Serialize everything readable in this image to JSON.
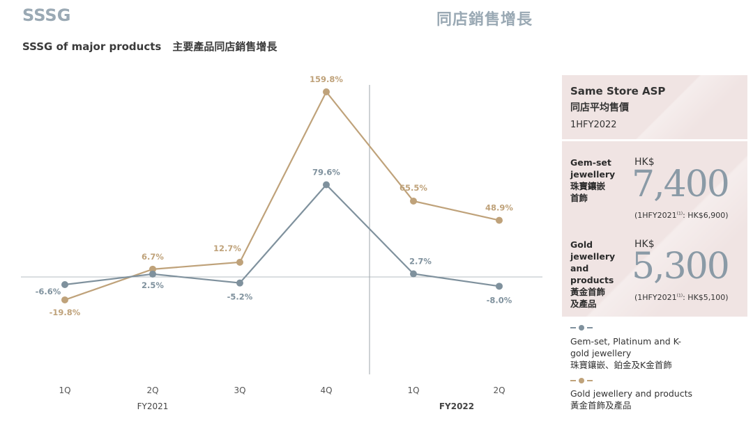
{
  "header": {
    "title_en": "SSSG",
    "title_zh": "同店銷售增長",
    "subtitle_en": "SSSG of major products",
    "subtitle_zh": "主要產品同店銷售增長"
  },
  "chart_data": {
    "type": "line",
    "categories": [
      "1Q",
      "2Q",
      "3Q",
      "4Q",
      "1Q",
      "2Q"
    ],
    "groups": [
      {
        "label": "FY2021",
        "from": 0,
        "to": 3
      },
      {
        "label": "FY2022",
        "from": 4,
        "to": 5
      }
    ],
    "series": [
      {
        "name": "Gem-set, Platinum and K-gold jewellery",
        "name_zh": "珠寶鑲嵌、鉑金及K金首飾",
        "color": "#7f919d",
        "values": [
          -6.6,
          2.5,
          -5.2,
          79.6,
          2.7,
          -8.0
        ],
        "labels": [
          "-6.6%",
          "2.5%",
          "-5.2%",
          "79.6%",
          "2.7%",
          "-8.0%"
        ]
      },
      {
        "name": "Gold jewellery and products",
        "name_zh": "黃金首飾及產品",
        "color": "#bfa27a",
        "values": [
          -19.8,
          6.7,
          12.7,
          159.8,
          65.5,
          48.9
        ],
        "labels": [
          "-19.8%",
          "6.7%",
          "12.7%",
          "159.8%",
          "65.5%",
          "48.9%"
        ]
      }
    ],
    "ylim": [
      -80,
      165
    ],
    "grid": false
  },
  "asp": {
    "title_en": "Same Store ASP",
    "title_zh": "同店平均售價",
    "period": "1HFY2022",
    "items": [
      {
        "label_lines": [
          "Gem-set",
          "jewellery",
          "珠寶鑲嵌",
          "首飾"
        ],
        "currency": "HK$",
        "value": "7,400",
        "prev_label": "(1HFY2021",
        "prev_note": "(1)",
        "prev_value": ": HK$6,900)"
      },
      {
        "label_lines": [
          "Gold",
          "jewellery",
          "and",
          "products",
          "黃金首飾",
          "及產品"
        ],
        "currency": "HK$",
        "value": "5,300",
        "prev_label": "(1HFY2021",
        "prev_note": "(1)",
        "prev_value": ": HK$5,100)"
      }
    ]
  }
}
